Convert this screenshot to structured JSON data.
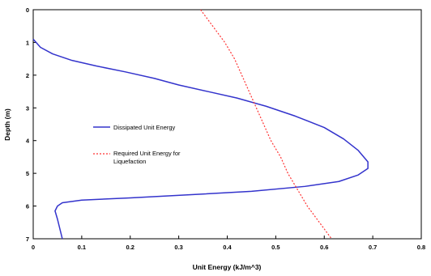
{
  "chart_data": {
    "type": "line",
    "orientation": "depth-down",
    "xlabel": "Unit Energy (kJ/m^3)",
    "ylabel": "Depth (m)",
    "xlim": [
      0,
      0.8
    ],
    "ylim": [
      0,
      7
    ],
    "x_ticks": [
      "0",
      "0.1",
      "0.2",
      "0.3",
      "0.4",
      "0.5",
      "0.6",
      "0.7",
      "0.8"
    ],
    "y_ticks": [
      "0",
      "1",
      "2",
      "3",
      "4",
      "5",
      "6",
      "7"
    ],
    "grid": false,
    "legend_position": "left-middle",
    "series": [
      {
        "name": "Dissipated Unit Energy",
        "color": "#3333cc",
        "style": "solid",
        "points": [
          [
            0.0,
            0.9
          ],
          [
            0.015,
            1.15
          ],
          [
            0.04,
            1.35
          ],
          [
            0.08,
            1.55
          ],
          [
            0.13,
            1.72
          ],
          [
            0.19,
            1.9
          ],
          [
            0.25,
            2.1
          ],
          [
            0.3,
            2.3
          ],
          [
            0.36,
            2.5
          ],
          [
            0.42,
            2.7
          ],
          [
            0.48,
            2.95
          ],
          [
            0.54,
            3.25
          ],
          [
            0.6,
            3.6
          ],
          [
            0.64,
            3.95
          ],
          [
            0.67,
            4.3
          ],
          [
            0.69,
            4.65
          ],
          [
            0.69,
            4.85
          ],
          [
            0.67,
            5.05
          ],
          [
            0.63,
            5.25
          ],
          [
            0.56,
            5.4
          ],
          [
            0.45,
            5.55
          ],
          [
            0.33,
            5.65
          ],
          [
            0.2,
            5.75
          ],
          [
            0.1,
            5.82
          ],
          [
            0.06,
            5.9
          ],
          [
            0.05,
            6.0
          ],
          [
            0.045,
            6.15
          ],
          [
            0.05,
            6.4
          ],
          [
            0.055,
            6.7
          ],
          [
            0.06,
            7.0
          ]
        ]
      },
      {
        "name": "Required Unit Energy for Liquefaction",
        "legend_lines": [
          "Required Unit Energy for",
          "Liquefaction"
        ],
        "color": "#ff3333",
        "style": "dashed",
        "points": [
          [
            0.345,
            0.0
          ],
          [
            0.37,
            0.5
          ],
          [
            0.395,
            1.0
          ],
          [
            0.415,
            1.5
          ],
          [
            0.43,
            2.0
          ],
          [
            0.445,
            2.5
          ],
          [
            0.46,
            3.0
          ],
          [
            0.475,
            3.5
          ],
          [
            0.49,
            4.0
          ],
          [
            0.51,
            4.5
          ],
          [
            0.525,
            5.0
          ],
          [
            0.545,
            5.5
          ],
          [
            0.565,
            6.0
          ],
          [
            0.59,
            6.5
          ],
          [
            0.615,
            7.0
          ]
        ]
      }
    ]
  }
}
